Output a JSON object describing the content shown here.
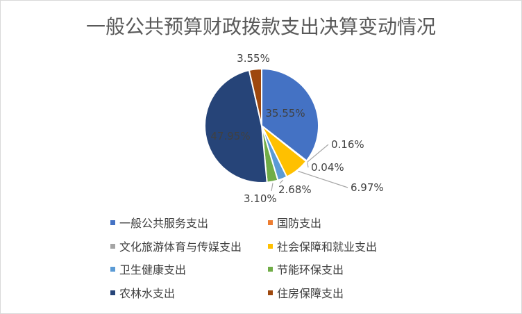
{
  "chart_data": {
    "type": "pie",
    "title": "一般公共预算财政拨款支出决算变动情况",
    "categories": [
      "一般公共服务支出",
      "国防支出",
      "文化旅游体育与传媒支出",
      "社会保障和就业支出",
      "卫生健康支出",
      "节能环保支出",
      "农林水支出",
      "住房保障支出"
    ],
    "values": [
      35.55,
      0.16,
      0.04,
      6.97,
      2.68,
      3.1,
      47.95,
      3.55
    ],
    "labels": [
      "35.55%",
      "0.16%",
      "0.04%",
      "6.97%",
      "2.68%",
      "3.10%",
      "47.95%",
      "3.55%"
    ],
    "colors": [
      "#4472c4",
      "#ed7d31",
      "#a5a5a5",
      "#ffc000",
      "#5b9bd5",
      "#70ad47",
      "#264478",
      "#9e480e"
    ],
    "legend_position": "bottom"
  }
}
